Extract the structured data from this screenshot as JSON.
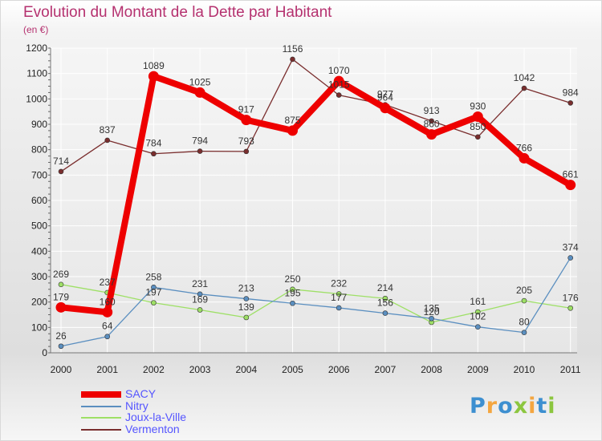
{
  "chart_data": {
    "type": "line",
    "title": "Evolution du Montant de la Dette par Habitant",
    "subtitle": "(en €)",
    "categories": [
      "2000",
      "2001",
      "2002",
      "2003",
      "2004",
      "2005",
      "2006",
      "2007",
      "2008",
      "2009",
      "2010",
      "2011"
    ],
    "ylim": [
      0,
      1200
    ],
    "yticks": [
      0,
      100,
      200,
      300,
      400,
      500,
      600,
      700,
      800,
      900,
      1000,
      1100,
      1200
    ],
    "grid": true,
    "legend_position": "bottom-left",
    "series": [
      {
        "name": "SACY",
        "color": "#ee0000",
        "values": [
          179,
          160,
          1089,
          1025,
          917,
          875,
          1070,
          964,
          860,
          930,
          766,
          661
        ]
      },
      {
        "name": "Nitry",
        "color": "#5b8fc0",
        "values": [
          26,
          64,
          258,
          231,
          213,
          195,
          177,
          156,
          135,
          102,
          80,
          374
        ]
      },
      {
        "name": "Joux-la-Ville",
        "color": "#9ee066",
        "values": [
          269,
          237,
          197,
          169,
          139,
          250,
          232,
          214,
          120,
          161,
          205,
          176
        ]
      },
      {
        "name": "Vermenton",
        "color": "#7a2e2e",
        "values": [
          714,
          837,
          784,
          794,
          793,
          1156,
          1015,
          977,
          913,
          850,
          1042,
          984
        ]
      }
    ]
  },
  "logo": {
    "letters": [
      {
        "ch": "P",
        "color": "#3d8fd0"
      },
      {
        "ch": "r",
        "color": "#f4a640"
      },
      {
        "ch": "o",
        "color": "#3d8fd0"
      },
      {
        "ch": "x",
        "color": "#8cc63f"
      },
      {
        "ch": "i",
        "color": "#f4a640"
      },
      {
        "ch": "t",
        "color": "#3d8fd0"
      },
      {
        "ch": "i",
        "color": "#8cc63f"
      }
    ]
  }
}
